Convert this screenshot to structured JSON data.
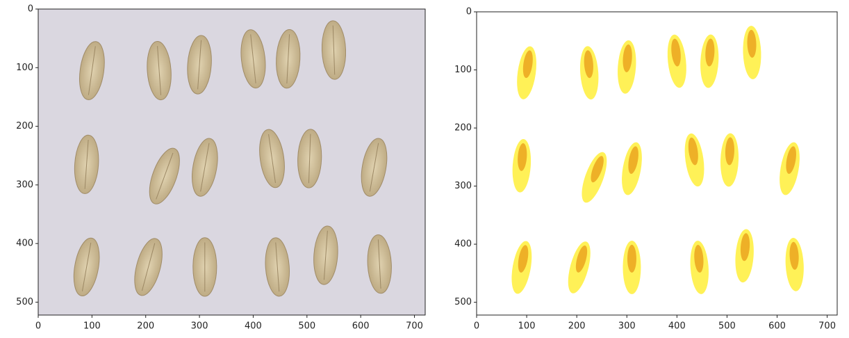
{
  "chart_data": [
    {
      "type": "image",
      "xlim": [
        0,
        720
      ],
      "ylim": [
        522,
        0
      ],
      "xticks": [
        0,
        100,
        200,
        300,
        400,
        500,
        600,
        700
      ],
      "yticks": [
        0,
        100,
        200,
        300,
        400,
        500
      ]
    },
    {
      "type": "image",
      "xlim": [
        0,
        720
      ],
      "ylim": [
        522,
        0
      ],
      "xticks": [
        0,
        100,
        200,
        300,
        400,
        500,
        600,
        700
      ],
      "yticks": [
        0,
        100,
        200,
        300,
        400,
        500
      ]
    }
  ]
}
